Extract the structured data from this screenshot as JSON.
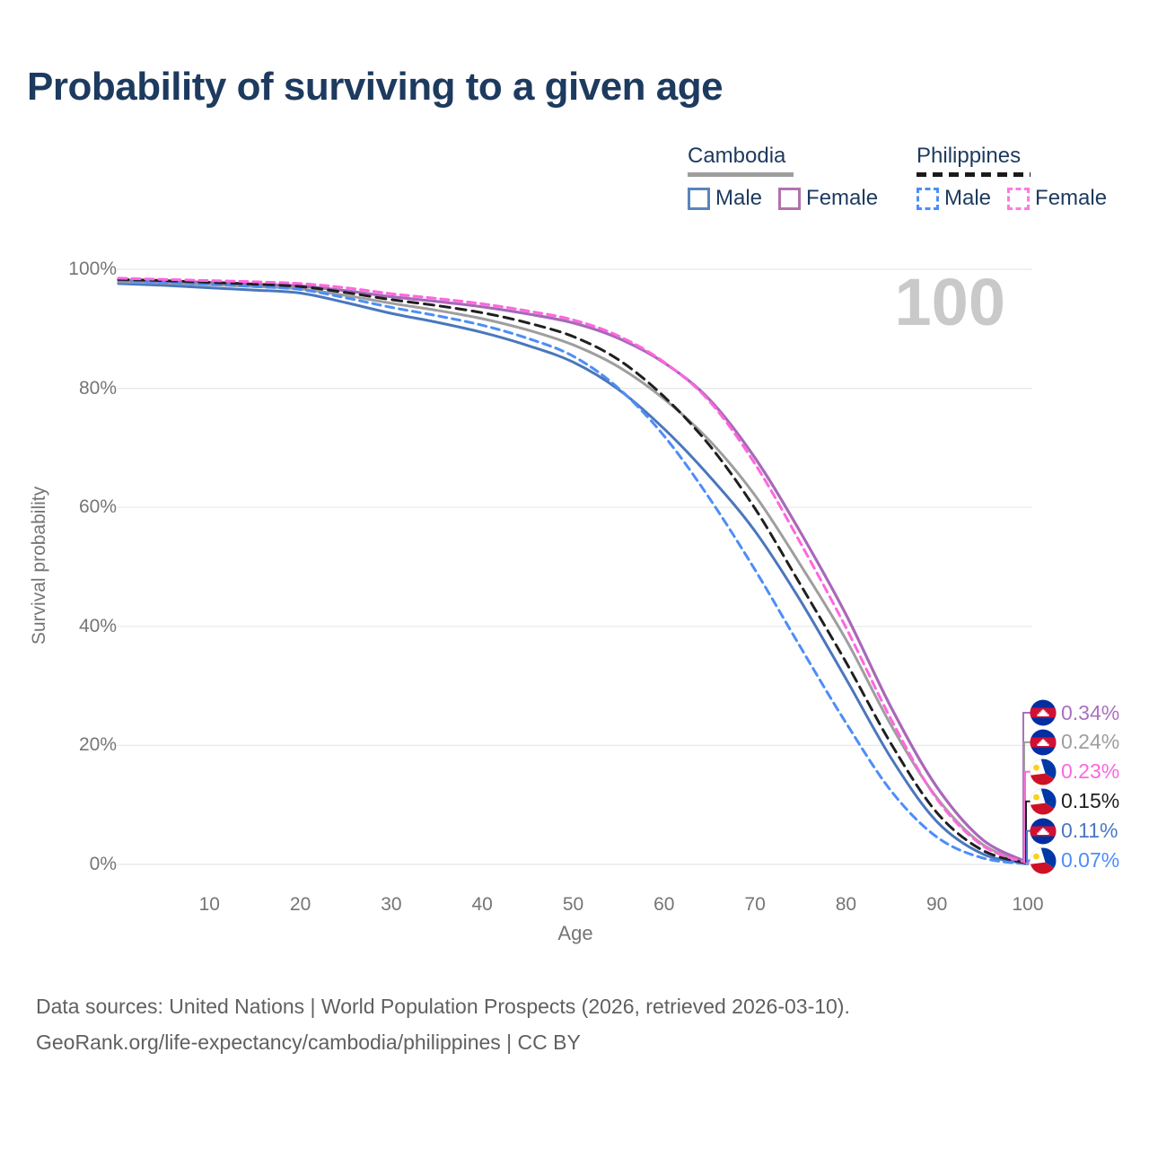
{
  "title": "Probability of surviving to a given age",
  "watermark": "100",
  "legend": {
    "groups": [
      {
        "id": "cambodia",
        "name": "Cambodia",
        "underline_style": "solid",
        "underline_color": "#9e9e9e",
        "items": [
          {
            "id": "cambodia-male",
            "label": "Male",
            "color": "#5b84bb",
            "box_style": "solid"
          },
          {
            "id": "cambodia-female",
            "label": "Female",
            "color": "#b173ad",
            "box_style": "solid"
          }
        ]
      },
      {
        "id": "philippines",
        "name": "Philippines",
        "underline_style": "dashed",
        "underline_color": "#1a1a1a",
        "items": [
          {
            "id": "philippines-male",
            "label": "Male",
            "color": "#4d8df7",
            "box_style": "dashed"
          },
          {
            "id": "philippines-female",
            "label": "Female",
            "color": "#ff7ae0",
            "box_style": "dashed"
          }
        ]
      }
    ]
  },
  "axes": {
    "y": {
      "label": "Survival probability",
      "ticks": [
        {
          "label": "0%",
          "value": 0
        },
        {
          "label": "20%",
          "value": 20
        },
        {
          "label": "40%",
          "value": 40
        },
        {
          "label": "60%",
          "value": 60
        },
        {
          "label": "80%",
          "value": 80
        },
        {
          "label": "100%",
          "value": 100
        }
      ]
    },
    "x": {
      "label": "Age",
      "ticks": [
        {
          "label": "10",
          "value": 10
        },
        {
          "label": "20",
          "value": 20
        },
        {
          "label": "30",
          "value": 30
        },
        {
          "label": "40",
          "value": 40
        },
        {
          "label": "50",
          "value": 50
        },
        {
          "label": "60",
          "value": 60
        },
        {
          "label": "70",
          "value": 70
        },
        {
          "label": "80",
          "value": 80
        },
        {
          "label": "90",
          "value": 90
        },
        {
          "label": "100",
          "value": 100
        }
      ]
    }
  },
  "chart_data": {
    "type": "line",
    "title": "Probability of surviving to a given age",
    "xlabel": "Age",
    "ylabel": "Survival probability",
    "xlim": [
      0,
      100
    ],
    "ylim": [
      0,
      100
    ],
    "grid": "horizontal",
    "legend_position": "top-right",
    "x": [
      0,
      5,
      10,
      15,
      20,
      25,
      30,
      35,
      40,
      45,
      50,
      55,
      60,
      65,
      70,
      75,
      80,
      85,
      90,
      95,
      100
    ],
    "series": [
      {
        "id": "cambodia-male",
        "name": "Cambodia Male",
        "country": "Cambodia",
        "sex": "Male",
        "color": "#4a77bd",
        "dash": null,
        "values": [
          97.6,
          97.3,
          96.9,
          96.5,
          96.0,
          94.4,
          92.6,
          91.1,
          89.4,
          87.2,
          84.4,
          79.8,
          73.2,
          65.2,
          56.0,
          44.3,
          31.2,
          17.8,
          7.2,
          1.8,
          0.11
        ]
      },
      {
        "id": "cambodia-all",
        "name": "Cambodia",
        "country": "Cambodia",
        "sex": "Both",
        "color": "#9e9e9e",
        "dash": null,
        "values": [
          97.9,
          97.7,
          97.4,
          97.1,
          96.7,
          95.6,
          94.3,
          93.1,
          91.7,
          89.8,
          87.3,
          83.6,
          78.2,
          71.2,
          62.0,
          50.3,
          37.8,
          23.3,
          11.2,
          3.4,
          0.24
        ]
      },
      {
        "id": "cambodia-female",
        "name": "Cambodia Female",
        "country": "Cambodia",
        "sex": "Female",
        "color": "#a868b8",
        "dash": null,
        "values": [
          98.2,
          98.0,
          97.8,
          97.5,
          97.2,
          96.4,
          95.4,
          94.6,
          93.7,
          92.5,
          91.0,
          88.4,
          84.3,
          78.1,
          68.3,
          55.8,
          42.0,
          26.3,
          13.0,
          4.2,
          0.34
        ]
      },
      {
        "id": "philippines-male",
        "name": "Philippines Male",
        "country": "Philippines",
        "sex": "Male",
        "color": "#4d8df7",
        "dash": "9 6",
        "values": [
          98.1,
          97.8,
          97.5,
          97.1,
          96.6,
          95.2,
          93.6,
          92.2,
          90.6,
          88.4,
          85.4,
          80.0,
          72.0,
          61.5,
          49.5,
          36.5,
          23.8,
          12.3,
          4.6,
          1.1,
          0.07
        ]
      },
      {
        "id": "philippines-all",
        "name": "Philippines",
        "country": "Philippines",
        "sex": "Both",
        "color": "#1f1f1f",
        "dash": "11 7",
        "values": [
          98.3,
          98.1,
          97.8,
          97.5,
          97.1,
          96.1,
          94.9,
          93.9,
          92.7,
          91.0,
          88.7,
          84.8,
          78.6,
          70.4,
          59.8,
          47.0,
          34.0,
          20.2,
          8.7,
          2.4,
          0.15
        ]
      },
      {
        "id": "philippines-female",
        "name": "Philippines Female",
        "country": "Philippines",
        "sex": "Female",
        "color": "#ff66de",
        "dash": "9 6",
        "values": [
          98.5,
          98.3,
          98.1,
          97.9,
          97.6,
          96.9,
          95.9,
          95.1,
          94.2,
          93.0,
          91.5,
          88.8,
          84.4,
          77.8,
          67.3,
          54.0,
          39.8,
          24.3,
          11.0,
          3.2,
          0.23
        ]
      }
    ]
  },
  "end_labels": [
    {
      "value": "0.34%",
      "color": "#aa70c0",
      "flag": "cambodia",
      "flag_icon": "cambodia-flag-icon",
      "series_id": "cambodia-female"
    },
    {
      "value": "0.24%",
      "color": "#9e9e9e",
      "flag": "cambodia",
      "flag_icon": "cambodia-flag-icon",
      "series_id": "cambodia-all"
    },
    {
      "value": "0.23%",
      "color": "#ff66e0",
      "flag": "philippines",
      "flag_icon": "philippines-flag-icon",
      "series_id": "philippines-female"
    },
    {
      "value": "0.15%",
      "color": "#1f1f1f",
      "flag": "philippines",
      "flag_icon": "philippines-flag-icon",
      "series_id": "philippines-all"
    },
    {
      "value": "0.11%",
      "color": "#4a77c4",
      "flag": "cambodia",
      "flag_icon": "cambodia-flag-icon",
      "series_id": "cambodia-male"
    },
    {
      "value": "0.07%",
      "color": "#4d8df7",
      "flag": "philippines",
      "flag_icon": "philippines-flag-icon",
      "series_id": "philippines-male"
    }
  ],
  "footer": {
    "line1": "Data sources: United Nations | World Population Prospects (2026, retrieved 2026-03-10).",
    "line2": "GeoRank.org/life-expectancy/cambodia/philippines | CC BY"
  }
}
